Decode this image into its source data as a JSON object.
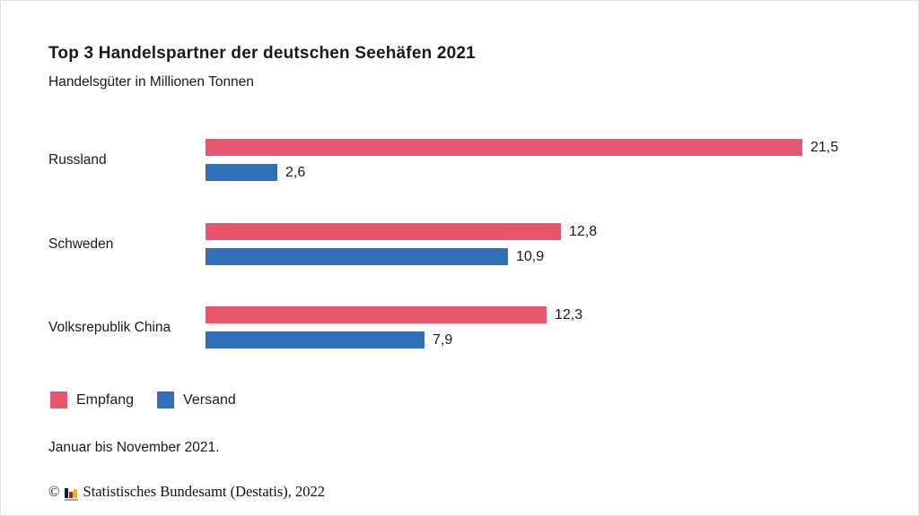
{
  "page": {
    "title": "Top 3 Handelspartner der deutschen Seehäfen 2021",
    "subtitle": "Handelsgüter in Millionen Tonnen",
    "footnote": "Januar bis November 2021.",
    "copyright_symbol": "©",
    "copyright_text": "Statistisches Bundesamt (Destatis), 2022",
    "logo_icon": "destatis-mini-bar-chart-icon"
  },
  "chart_data": {
    "type": "bar",
    "orientation": "horizontal",
    "title": "Top 3 Handelspartner der deutschen Seehäfen 2021",
    "subtitle": "Handelsgüter in Millionen Tonnen",
    "unit": "Millionen Tonnen",
    "categories": [
      "Russland",
      "Schweden",
      "Volksrepublik China"
    ],
    "series": [
      {
        "name": "Empfang",
        "color": "#e8566b",
        "values": [
          21.5,
          12.8,
          12.3
        ],
        "labels": [
          "21,5",
          "12,8",
          "12,3"
        ]
      },
      {
        "name": "Versand",
        "color": "#3070b8",
        "values": [
          2.6,
          10.9,
          7.9
        ],
        "labels": [
          "2,6",
          "10,9",
          "7,9"
        ]
      }
    ],
    "xlim": [
      0,
      21.5
    ],
    "grid": false,
    "value_labels": "end-of-bar",
    "legend_position": "bottom-left",
    "footnote": "Januar bis November 2021.",
    "source": "© Statistisches Bundesamt (Destatis), 2022"
  }
}
